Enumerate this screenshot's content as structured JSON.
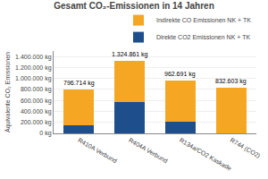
{
  "chart_data": {
    "type": "bar",
    "stacked": true,
    "title": "Gesamt CO₂-Emissionen in 14 Jahren",
    "ylabel": "Äquivalente CO₂ Emissionen",
    "categories": [
      "R410A Verbund",
      "R404A Verbund",
      "R134a/CO2 Kaskade",
      "R744 (CO2)"
    ],
    "series": [
      {
        "name": "Direkte CO2 Emissionen NK + TK",
        "color": "#1f4e8c",
        "values": [
          140000,
          575000,
          215000,
          5000
        ]
      },
      {
        "name": "Indirekte CO Emissionen NK + TK",
        "color": "#f5a623",
        "values": [
          656714,
          749861,
          747691,
          827603
        ]
      }
    ],
    "totals": [
      796714,
      1324861,
      962691,
      832603
    ],
    "total_labels": [
      "796.714 kg",
      "1.324.861 kg",
      "962.691 kg",
      "832.603 kg"
    ],
    "ylim": [
      0,
      1500000
    ],
    "yticks": [
      {
        "value": 0,
        "label": "0 kg"
      },
      {
        "value": 200000,
        "label": "200.000 kg"
      },
      {
        "value": 400000,
        "label": "400.000 kg"
      },
      {
        "value": 600000,
        "label": "600.000 kg"
      },
      {
        "value": 800000,
        "label": "800.000 kg"
      },
      {
        "value": 1000000,
        "label": "1.000.000 kg"
      },
      {
        "value": 1200000,
        "label": "1.200.000 kg"
      },
      {
        "value": 1400000,
        "label": "1.400.000 kg"
      }
    ],
    "grid": true,
    "legend": "upper right"
  }
}
